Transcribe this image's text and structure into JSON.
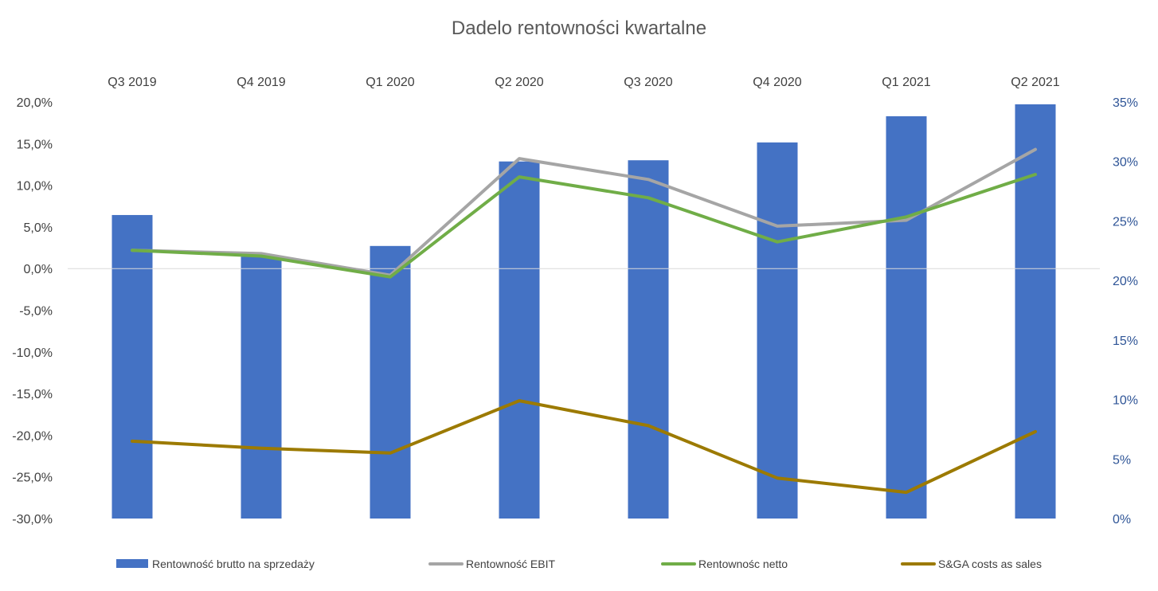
{
  "chart_data": {
    "type": "bar+line",
    "title": "Dadelo rentowności kwartalne",
    "categories": [
      "Q3 2019",
      "Q4 2019",
      "Q1 2020",
      "Q2 2020",
      "Q3 2020",
      "Q4 2020",
      "Q1 2021",
      "Q2 2021"
    ],
    "left_axis": {
      "ylim": [
        -0.3,
        0.2
      ],
      "ticks": [
        0.2,
        0.15,
        0.1,
        0.05,
        0.0,
        -0.05,
        -0.1,
        -0.15,
        -0.2,
        -0.25,
        -0.3
      ],
      "tick_labels": [
        "20,0%",
        "15,0%",
        "10,0%",
        "5,0%",
        "0,0%",
        "-5,0%",
        "-10,0%",
        "-15,0%",
        "-20,0%",
        "-25,0%",
        "-30,0%"
      ]
    },
    "right_axis": {
      "ylim": [
        0,
        0.35
      ],
      "ticks": [
        0.35,
        0.3,
        0.25,
        0.2,
        0.15,
        0.1,
        0.05,
        0.0
      ],
      "tick_labels": [
        "35%",
        "30%",
        "25%",
        "20%",
        "15%",
        "10%",
        "5%",
        "0%"
      ]
    },
    "series": [
      {
        "name": "Rentowność brutto na sprzedaży",
        "kind": "bar",
        "axis": "right",
        "color": "#4472c4",
        "values": [
          0.255,
          0.22,
          0.229,
          0.3,
          0.301,
          0.316,
          0.338,
          0.348
        ]
      },
      {
        "name": "Rentowność EBIT",
        "kind": "line",
        "axis": "left",
        "color": "#a5a5a5",
        "values": [
          0.022,
          0.018,
          -0.008,
          0.132,
          0.107,
          0.051,
          0.058,
          0.143
        ]
      },
      {
        "name": "Rentownośc netto",
        "kind": "line",
        "axis": "left",
        "color": "#70ad47",
        "values": [
          0.022,
          0.015,
          -0.01,
          0.11,
          0.085,
          0.032,
          0.062,
          0.113
        ]
      },
      {
        "name": "S&GA costs as sales",
        "kind": "line",
        "axis": "right",
        "color": "#9c7a00",
        "values": [
          0.065,
          0.059,
          0.055,
          0.099,
          0.078,
          0.034,
          0.022,
          0.073
        ]
      }
    ],
    "legend_position": "bottom",
    "grid": false
  }
}
